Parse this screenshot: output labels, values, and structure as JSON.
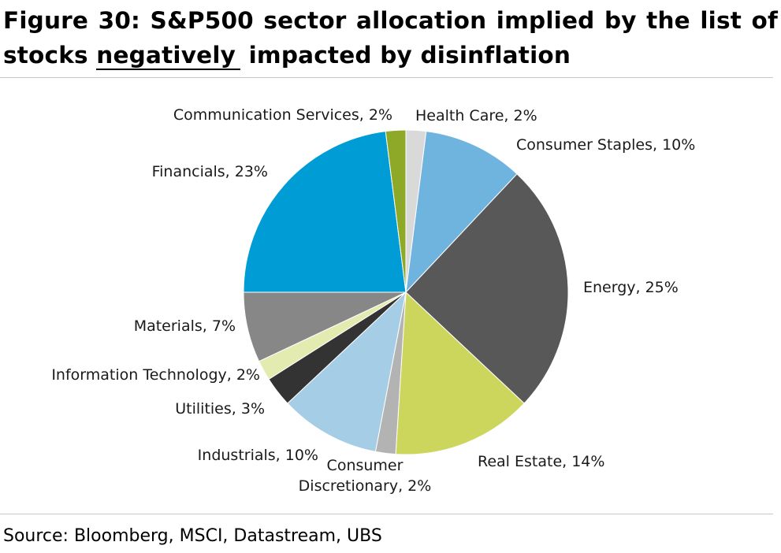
{
  "title": {
    "line1": "Figure 30: S&P500 sector allocation implied by the list of",
    "line2_prefix": "stocks ",
    "line2_underlined": "negatively",
    "line2_suffix": " impacted by disinflation"
  },
  "source": "Source: Bloomberg, MSCI, Datastream, UBS",
  "chart_data": {
    "type": "pie",
    "title": "S&P500 sector allocation implied by the list of stocks negatively impacted by disinflation",
    "unit": "%",
    "start_angle_deg": 0,
    "direction": "clockwise",
    "slices": [
      {
        "name": "Health Care",
        "value": 2,
        "label": "Health Care, 2%",
        "color": "#d9d9d9"
      },
      {
        "name": "Consumer Staples",
        "value": 10,
        "label": "Consumer Staples, 10%",
        "color": "#6fb3df"
      },
      {
        "name": "Energy",
        "value": 25,
        "label": "Energy, 25%",
        "color": "#585858"
      },
      {
        "name": "Real Estate",
        "value": 14,
        "label": "Real Estate, 14%",
        "color": "#cdd65c"
      },
      {
        "name": "Consumer Discretionary",
        "value": 2,
        "label": "Consumer Discretionary, 2%",
        "label_lines": [
          "Consumer",
          "Discretionary, 2%"
        ],
        "color": "#b3b3b3"
      },
      {
        "name": "Industrials",
        "value": 10,
        "label": "Industrials, 10%",
        "color": "#a6cde6"
      },
      {
        "name": "Utilities",
        "value": 3,
        "label": "Utilities, 3%",
        "color": "#333333"
      },
      {
        "name": "Information Technology",
        "value": 2,
        "label": "Information Technology, 2%",
        "color": "#e3ebb0"
      },
      {
        "name": "Materials",
        "value": 7,
        "label": "Materials, 7%",
        "color": "#878787"
      },
      {
        "name": "Financials",
        "value": 23,
        "label": "Financials, 23%",
        "color": "#009cd6"
      },
      {
        "name": "Communication Services",
        "value": 2,
        "label": "Communication Services, 2%",
        "color": "#8ea828"
      }
    ]
  }
}
